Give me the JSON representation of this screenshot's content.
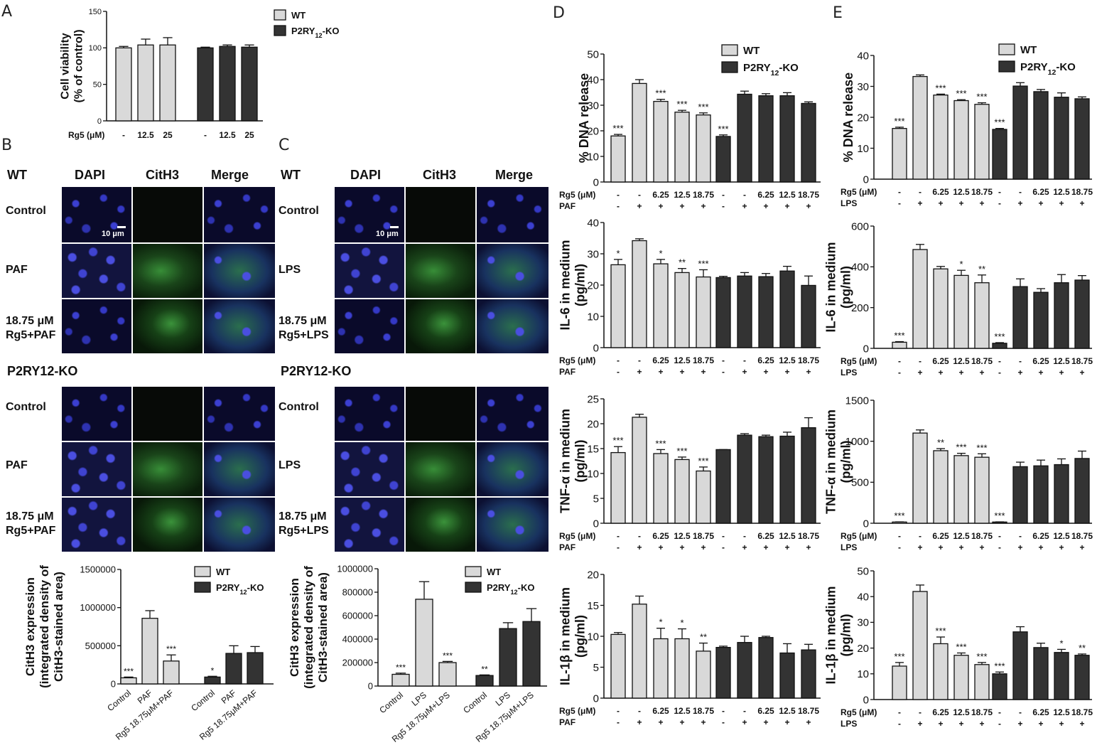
{
  "panel_letters": [
    "A",
    "B",
    "C",
    "D",
    "E"
  ],
  "micro": {
    "B": {
      "wt_title": "WT",
      "ko_title": "P2RY12-KO",
      "col_headers": [
        "DAPI",
        "CitH3",
        "Merge"
      ],
      "rows": [
        "Control",
        "PAF",
        "18.75 μM Rg5+PAF"
      ],
      "scale": "10 μm"
    },
    "C": {
      "wt_title": "WT",
      "ko_title": "P2RY12-KO",
      "col_headers": [
        "DAPI",
        "CitH3",
        "Merge"
      ],
      "rows": [
        "Control",
        "LPS",
        "18.75 μM Rg5+LPS"
      ],
      "scale": "10 μm"
    }
  },
  "colors": {
    "wt": "#d9d9d9",
    "ko": "#333333"
  },
  "chart_data": [
    {
      "id": "A",
      "type": "bar",
      "ylabel": "Cell viability (% of control)",
      "ylim": [
        0,
        150
      ],
      "yticks": [
        0,
        50,
        100,
        150
      ],
      "row_labels": [
        "Rg5 (μM)"
      ],
      "groups": [
        [
          "-",
          "12.5",
          "25"
        ],
        [
          "-",
          "12.5",
          "25"
        ]
      ],
      "series": [
        {
          "name": "WT",
          "values": [
            100,
            104,
            104
          ],
          "errors": [
            2,
            8,
            10
          ]
        },
        {
          "name": "P2RY12-KO",
          "values": [
            100,
            102,
            101
          ],
          "errors": [
            1,
            2,
            3
          ]
        }
      ],
      "sig": [
        [
          "",
          "",
          ""
        ],
        [
          "",
          "",
          ""
        ]
      ]
    },
    {
      "id": "B",
      "type": "bar",
      "ylabel": "CitH3 expression (integrated density of CitH3-stained area)",
      "ylim": [
        0,
        1500000
      ],
      "yticks": [
        0,
        500000,
        1000000,
        1500000
      ],
      "categories": [
        "Control",
        "PAF",
        "Rg5 18.75μM+PAF"
      ],
      "series": [
        {
          "name": "WT",
          "values": [
            80000,
            860000,
            300000
          ],
          "errors": [
            10000,
            100000,
            80000
          ]
        },
        {
          "name": "P2RY12-KO",
          "values": [
            90000,
            400000,
            410000
          ],
          "errors": [
            10000,
            100000,
            80000
          ]
        }
      ],
      "sig": [
        [
          "***",
          "",
          "***"
        ],
        [
          "*",
          "",
          ""
        ]
      ]
    },
    {
      "id": "C",
      "type": "bar",
      "ylabel": "CitH3 expression (integrated density of CitH3-stained area)",
      "ylim": [
        0,
        1000000
      ],
      "yticks": [
        0,
        200000,
        400000,
        600000,
        800000,
        1000000
      ],
      "categories": [
        "Control",
        "LPS",
        "Rg5 18.75μM+LPS"
      ],
      "series": [
        {
          "name": "WT",
          "values": [
            100000,
            740000,
            200000
          ],
          "errors": [
            10000,
            150000,
            10000
          ]
        },
        {
          "name": "P2RY12-KO",
          "values": [
            90000,
            490000,
            550000
          ],
          "errors": [
            5000,
            50000,
            110000
          ]
        }
      ],
      "sig": [
        [
          "***",
          "",
          "***"
        ],
        [
          "**",
          "",
          ""
        ]
      ]
    },
    {
      "id": "D1",
      "type": "bar",
      "ylabel": "% DNA release",
      "ylim": [
        0,
        50
      ],
      "yticks": [
        0,
        10,
        20,
        30,
        40,
        50
      ],
      "row_labels": [
        "Rg5 (μM)",
        "PAF"
      ],
      "groups": [
        [
          "-",
          "-",
          "6.25",
          "12.5",
          "18.75"
        ],
        [
          "-",
          "-",
          "6.25",
          "12.5",
          "18.75"
        ]
      ],
      "stim": [
        "-",
        "+",
        "+",
        "+",
        "+"
      ],
      "series": [
        {
          "name": "WT",
          "values": [
            18,
            38.5,
            31.5,
            27.3,
            26.2
          ],
          "errors": [
            0.6,
            1.5,
            0.8,
            0.7,
            0.8
          ]
        },
        {
          "name": "P2RY12-KO",
          "values": [
            17.8,
            34.3,
            33.7,
            33.7,
            30.7
          ],
          "errors": [
            0.6,
            1.2,
            0.8,
            1.2,
            0.6
          ]
        }
      ],
      "sig": [
        [
          "***",
          "",
          "***",
          "***",
          "***"
        ],
        [
          "***",
          "",
          "",
          "",
          ""
        ]
      ],
      "legend": true
    },
    {
      "id": "D2",
      "type": "bar",
      "ylabel": "IL-6 in medium (pg/ml)",
      "ylim": [
        0,
        40
      ],
      "yticks": [
        0,
        10,
        20,
        30,
        40
      ],
      "row_labels": [
        "Rg5 (μM)",
        "PAF"
      ],
      "groups": [
        [
          "-",
          "-",
          "6.25",
          "12.5",
          "18.75"
        ],
        [
          "-",
          "-",
          "6.25",
          "12.5",
          "18.75"
        ]
      ],
      "stim": [
        "-",
        "+",
        "+",
        "+",
        "+"
      ],
      "series": [
        {
          "name": "WT",
          "values": [
            26.5,
            34.2,
            26.8,
            24,
            22.6
          ],
          "errors": [
            1.7,
            0.6,
            1.4,
            1.3,
            2.3
          ]
        },
        {
          "name": "P2RY12-KO",
          "values": [
            22.4,
            22.9,
            22.7,
            24.5,
            19.9
          ],
          "errors": [
            0.4,
            1.1,
            1,
            1.5,
            3
          ]
        }
      ],
      "sig": [
        [
          "*",
          "",
          "*",
          "**",
          "***"
        ],
        [
          "",
          "",
          "",
          "",
          ""
        ]
      ]
    },
    {
      "id": "D3",
      "type": "bar",
      "ylabel": "TNF-α in medium (pg/ml)",
      "ylim": [
        0,
        25
      ],
      "yticks": [
        0,
        5,
        10,
        15,
        20,
        25
      ],
      "row_labels": [
        "Rg5 (μM)",
        "PAF"
      ],
      "groups": [
        [
          "-",
          "-",
          "6.25",
          "12.5",
          "18.75"
        ],
        [
          "-",
          "-",
          "6.25",
          "12.5",
          "18.75"
        ]
      ],
      "stim": [
        "-",
        "+",
        "+",
        "+",
        "+"
      ],
      "series": [
        {
          "name": "WT",
          "values": [
            14.2,
            21.3,
            14,
            12.8,
            10.5
          ],
          "errors": [
            1.2,
            0.6,
            0.8,
            0.5,
            0.8
          ]
        },
        {
          "name": "P2RY12-KO",
          "values": [
            14.8,
            17.7,
            17.4,
            17.5,
            19.2
          ],
          "errors": [
            0,
            0.3,
            0.3,
            0.8,
            2
          ]
        }
      ],
      "sig": [
        [
          "***",
          "",
          "***",
          "***",
          "***"
        ],
        [
          "",
          "",
          "",
          "",
          ""
        ]
      ]
    },
    {
      "id": "D4",
      "type": "bar",
      "ylabel": "IL-1β in medium (pg/ml)",
      "ylim": [
        0,
        20
      ],
      "yticks": [
        0,
        5,
        10,
        15,
        20
      ],
      "row_labels": [
        "Rg5 (μM)",
        "PAF"
      ],
      "groups": [
        [
          "-",
          "-",
          "6.25",
          "12.5",
          "18.75"
        ],
        [
          "-",
          "-",
          "6.25",
          "12.5",
          "18.75"
        ]
      ],
      "stim": [
        "-",
        "+",
        "+",
        "+",
        "+"
      ],
      "series": [
        {
          "name": "WT",
          "values": [
            10.3,
            15.2,
            9.6,
            9.6,
            7.6
          ],
          "errors": [
            0.3,
            1.3,
            1.7,
            1.6,
            1.3
          ]
        },
        {
          "name": "P2RY12-KO",
          "values": [
            8.2,
            9,
            9.8,
            7.3,
            7.8
          ],
          "errors": [
            0.2,
            1,
            0.2,
            1.5,
            0.9
          ]
        }
      ],
      "sig": [
        [
          "",
          "",
          "*",
          "*",
          "**"
        ],
        [
          "",
          "",
          "",
          "",
          ""
        ]
      ]
    },
    {
      "id": "E1",
      "type": "bar",
      "ylabel": "% DNA release",
      "ylim": [
        0,
        40
      ],
      "yticks": [
        0,
        10,
        20,
        30,
        40
      ],
      "row_labels": [
        "Rg5 (μM)",
        "LPS"
      ],
      "groups": [
        [
          "-",
          "-",
          "6.25",
          "12.5",
          "18.75"
        ],
        [
          "-",
          "-",
          "6.25",
          "12.5",
          "18.75"
        ]
      ],
      "stim": [
        "-",
        "+",
        "+",
        "+",
        "+"
      ],
      "series": [
        {
          "name": "WT",
          "values": [
            16.4,
            33.2,
            27.2,
            25.4,
            24.2
          ],
          "errors": [
            0.4,
            0.5,
            0.3,
            0.3,
            0.5
          ]
        },
        {
          "name": "P2RY12-KO",
          "values": [
            16.1,
            30.1,
            28.3,
            26.5,
            26
          ],
          "errors": [
            0.3,
            1.1,
            0.7,
            1.4,
            0.6
          ]
        }
      ],
      "sig": [
        [
          "***",
          "",
          "***",
          "***",
          "***"
        ],
        [
          "***",
          "",
          "",
          "",
          ""
        ]
      ],
      "legend": true
    },
    {
      "id": "E2",
      "type": "bar",
      "ylabel": "IL-6 in medium (pg/ml)",
      "ylim": [
        0,
        600
      ],
      "yticks": [
        0,
        200,
        400,
        600
      ],
      "row_labels": [
        "Rg5 (μM)",
        "LPS"
      ],
      "groups": [
        [
          "-",
          "-",
          "6.25",
          "12.5",
          "18.75"
        ],
        [
          "-",
          "-",
          "6.25",
          "12.5",
          "18.75"
        ]
      ],
      "stim": [
        "-",
        "+",
        "+",
        "+",
        "+"
      ],
      "series": [
        {
          "name": "WT",
          "values": [
            30,
            485,
            390,
            358,
            322
          ],
          "errors": [
            3,
            25,
            12,
            25,
            38
          ]
        },
        {
          "name": "P2RY12-KO",
          "values": [
            25,
            303,
            275,
            322,
            335
          ],
          "errors": [
            3,
            38,
            18,
            40,
            22
          ]
        }
      ],
      "sig": [
        [
          "***",
          "",
          "",
          "*",
          "**"
        ],
        [
          "***",
          "",
          "",
          "",
          ""
        ]
      ]
    },
    {
      "id": "E3",
      "type": "bar",
      "ylabel": "TNF-α in medium (pg/ml)",
      "ylim": [
        0,
        1500
      ],
      "yticks": [
        0,
        500,
        1000,
        1500
      ],
      "row_labels": [
        "Rg5 (μM)",
        "LPS"
      ],
      "groups": [
        [
          "-",
          "-",
          "6.25",
          "12.5",
          "18.75"
        ],
        [
          "-",
          "-",
          "6.25",
          "12.5",
          "18.75"
        ]
      ],
      "stim": [
        "-",
        "+",
        "+",
        "+",
        "+"
      ],
      "series": [
        {
          "name": "WT",
          "values": [
            15,
            1100,
            885,
            825,
            805
          ],
          "errors": [
            2,
            38,
            25,
            28,
            42
          ]
        },
        {
          "name": "P2RY12-KO",
          "values": [
            15,
            690,
            700,
            715,
            790
          ],
          "errors": [
            2,
            55,
            70,
            70,
            90
          ]
        }
      ],
      "sig": [
        [
          "***",
          "",
          "**",
          "***",
          "***"
        ],
        [
          "***",
          "",
          "",
          "",
          ""
        ]
      ]
    },
    {
      "id": "E4",
      "type": "bar",
      "ylabel": "IL-1β in medium (pg/ml)",
      "ylim": [
        0,
        50
      ],
      "yticks": [
        0,
        10,
        20,
        30,
        40,
        50
      ],
      "row_labels": [
        "Rg5 (μM)",
        "LPS"
      ],
      "groups": [
        [
          "-",
          "-",
          "6.25",
          "12.5",
          "18.75"
        ],
        [
          "-",
          "-",
          "6.25",
          "12.5",
          "18.75"
        ]
      ],
      "stim": [
        "-",
        "+",
        "+",
        "+",
        "+"
      ],
      "series": [
        {
          "name": "WT",
          "values": [
            13,
            42,
            21.7,
            17.2,
            13.6
          ],
          "errors": [
            1.4,
            2.5,
            2.6,
            0.9,
            0.8
          ]
        },
        {
          "name": "P2RY12-KO",
          "values": [
            10,
            26.3,
            20.2,
            18.3,
            17.2
          ],
          "errors": [
            0.7,
            2,
            1.7,
            1.2,
            0.5
          ]
        }
      ],
      "sig": [
        [
          "***",
          "",
          "***",
          "***",
          "***"
        ],
        [
          "***",
          "",
          "",
          "*",
          "**"
        ]
      ]
    }
  ]
}
